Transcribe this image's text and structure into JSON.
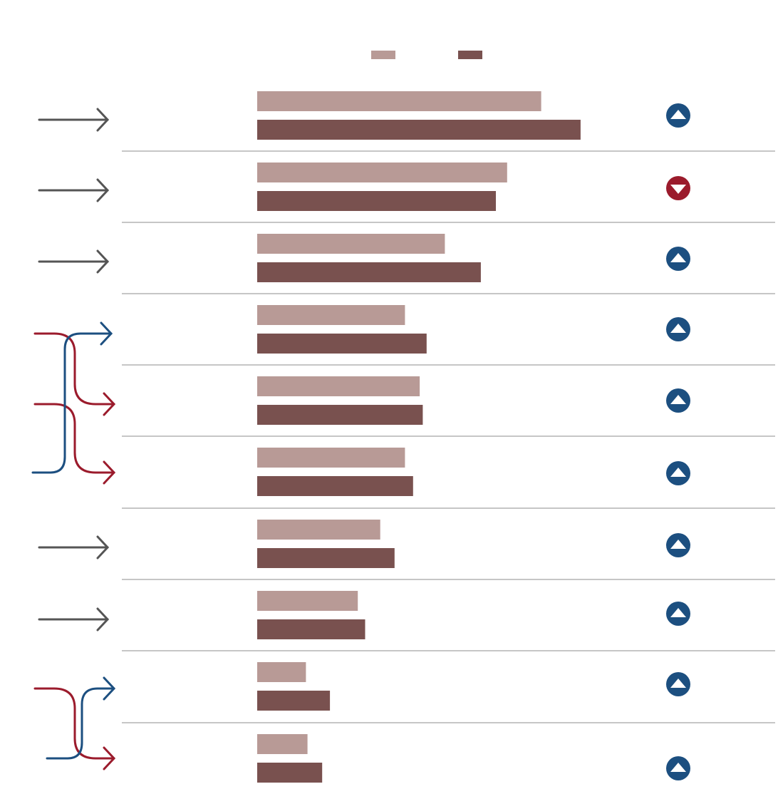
{
  "colors": {
    "series_a": "#b89a96",
    "series_b": "#79514f",
    "up": "#1c4f80",
    "down": "#9b1b2c",
    "steady_arrow": "#555555",
    "divider": "#8c8c8c"
  },
  "chart_data": {
    "type": "bar",
    "orientation": "horizontal",
    "grouping": "paired",
    "grid": false,
    "legend": {
      "placement": "top-center",
      "entries": [
        "",
        ""
      ]
    },
    "title": "",
    "xlabel": "",
    "ylabel": "",
    "xlim": [
      0,
      100
    ],
    "categories": [
      "",
      "",
      "",
      "",
      "",
      "",
      "",
      "",
      "",
      ""
    ],
    "series": [
      {
        "values": [
          73.4,
          64.6,
          48.5,
          38.2,
          42.0,
          38.2,
          31.8,
          26.0,
          12.6,
          13.0
        ]
      },
      {
        "values": [
          83.6,
          61.7,
          57.8,
          43.8,
          42.8,
          40.3,
          35.5,
          27.9,
          18.8,
          16.8
        ]
      }
    ],
    "change_indicator": [
      "up",
      "down",
      "up",
      "up",
      "up",
      "up",
      "up",
      "up",
      "up",
      "up"
    ],
    "rank_moves": [
      {
        "type": "steady"
      },
      {
        "type": "steady"
      },
      {
        "type": "steady"
      },
      {
        "type": "from",
        "to_row": 5
      },
      {
        "type": "down",
        "from_row": 3
      },
      {
        "type": "down",
        "from_row": 4
      },
      {
        "type": "steady"
      },
      {
        "type": "steady"
      },
      {
        "type": "from",
        "to_row": 9
      },
      {
        "type": "down",
        "from_row": 8
      }
    ]
  }
}
